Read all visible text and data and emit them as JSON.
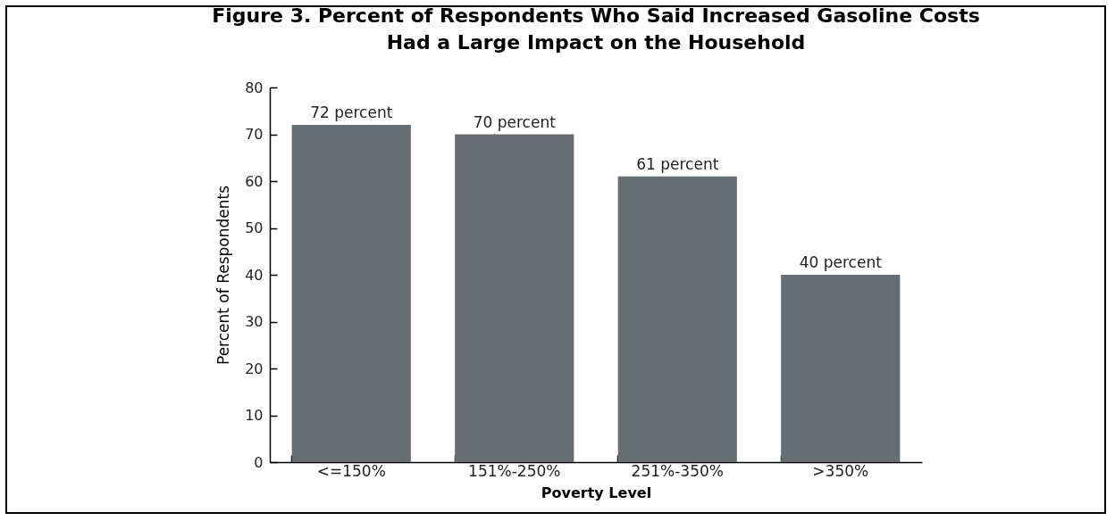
{
  "chart_data": {
    "type": "bar",
    "title": "Figure 3.  Percent of Respondents Who Said Increased Gasoline Costs\nHad a Large Impact on the Household",
    "xlabel": "Poverty Level",
    "ylabel": "Percent of Respondents",
    "categories": [
      "<=150%",
      "151%-250%",
      "251%-350%",
      ">350%"
    ],
    "values": [
      72,
      70,
      61,
      40
    ],
    "value_labels": [
      "72 percent",
      "70 percent",
      "61 percent",
      "40 percent"
    ],
    "color": "#676e71",
    "ylim": [
      0,
      80
    ],
    "yticks": [
      0,
      10,
      20,
      30,
      40,
      50,
      60,
      70,
      80
    ],
    "grid": false
  }
}
